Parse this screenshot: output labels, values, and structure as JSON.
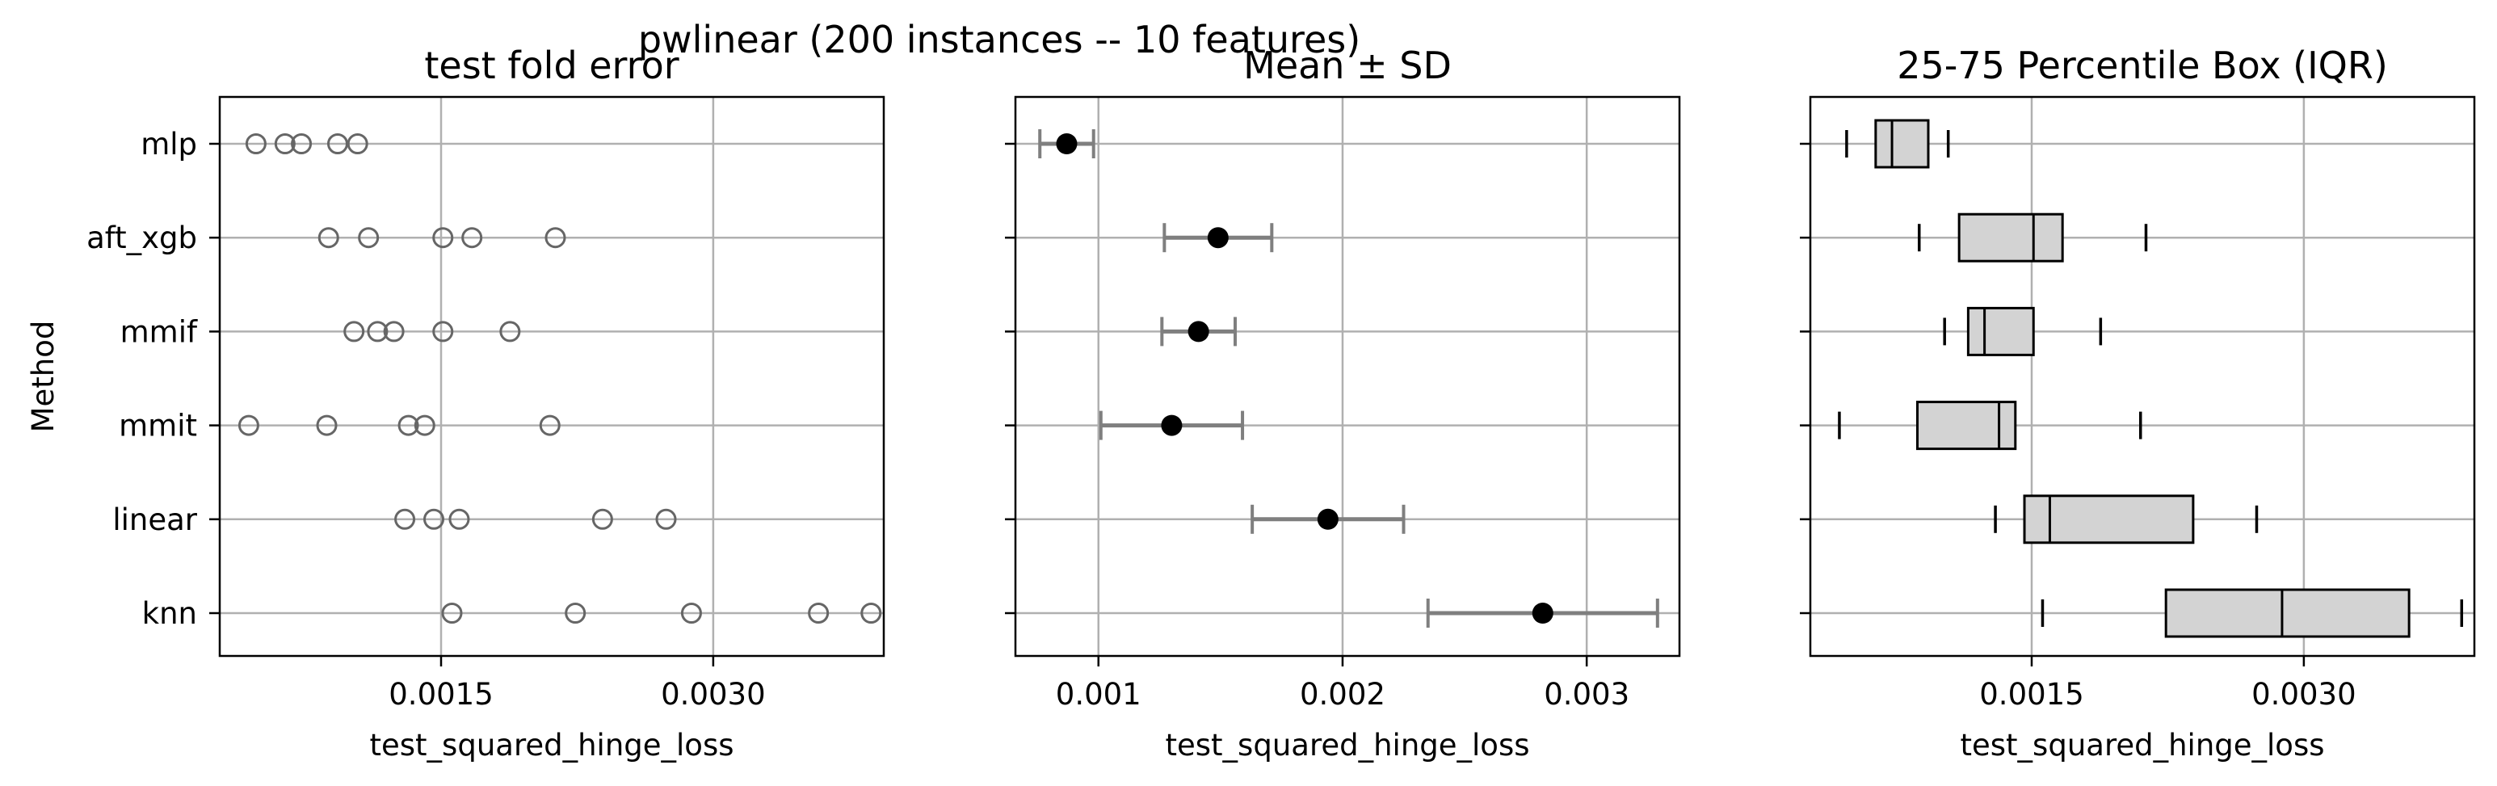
{
  "figure": {
    "suptitle": "pwlinear (200 instances -- 10 features)",
    "y_axis_label": "Method",
    "x_axis_label": "test_squared_hinge_loss"
  },
  "methods": [
    "mlp",
    "aft_xgb",
    "mmif",
    "mmit",
    "linear",
    "knn"
  ],
  "colors": {
    "marker_edge": "#666666",
    "mean_point": "#000000",
    "error_bar": "#7f7f7f",
    "box_fill": "#d3d3d3",
    "grid": "#b0b0b0"
  },
  "chart_data": [
    {
      "type": "scatter",
      "title": "test fold error",
      "xlabel": "test_squared_hinge_loss",
      "ylabel": "Method",
      "xlim": [
        0.00028,
        0.00394
      ],
      "xticks": [
        0.0015,
        0.003
      ],
      "xtick_labels": [
        "0.0015",
        "0.0030"
      ],
      "grid": true,
      "categories": [
        "mlp",
        "aft_xgb",
        "mmif",
        "mmit",
        "linear",
        "knn"
      ],
      "series": [
        {
          "category": "mlp",
          "values": [
            0.00048,
            0.00064,
            0.00073,
            0.00093,
            0.00104
          ]
        },
        {
          "category": "aft_xgb",
          "values": [
            0.00088,
            0.0011,
            0.00151,
            0.00167,
            0.00213
          ]
        },
        {
          "category": "mmif",
          "values": [
            0.00102,
            0.00115,
            0.00124,
            0.00151,
            0.00188
          ]
        },
        {
          "category": "mmit",
          "values": [
            0.00044,
            0.00087,
            0.00132,
            0.00141,
            0.0021
          ]
        },
        {
          "category": "linear",
          "values": [
            0.0013,
            0.00146,
            0.0016,
            0.00239,
            0.00274
          ]
        },
        {
          "category": "knn",
          "values": [
            0.00156,
            0.00224,
            0.00288,
            0.00358,
            0.00387
          ]
        }
      ]
    },
    {
      "type": "errorbar",
      "title": "Mean ± SD",
      "xlabel": "test_squared_hinge_loss",
      "xlim": [
        0.00066,
        0.00338
      ],
      "xticks": [
        0.001,
        0.002,
        0.003
      ],
      "xtick_labels": [
        "0.001",
        "0.002",
        "0.003"
      ],
      "grid": true,
      "categories": [
        "mlp",
        "aft_xgb",
        "mmif",
        "mmit",
        "linear",
        "knn"
      ],
      "series": [
        {
          "category": "mlp",
          "mean": 0.00087,
          "sd": 0.00011
        },
        {
          "category": "aft_xgb",
          "mean": 0.00149,
          "sd": 0.00022
        },
        {
          "category": "mmif",
          "mean": 0.00141,
          "sd": 0.00015
        },
        {
          "category": "mmit",
          "mean": 0.0013,
          "sd": 0.00029
        },
        {
          "category": "linear",
          "mean": 0.00194,
          "sd": 0.00031
        },
        {
          "category": "knn",
          "mean": 0.00282,
          "sd": 0.00047
        }
      ]
    },
    {
      "type": "box",
      "title": "25-75 Percentile Box (IQR)",
      "xlabel": "test_squared_hinge_loss",
      "xlim": [
        0.00028,
        0.00394
      ],
      "xticks": [
        0.0015,
        0.003
      ],
      "xtick_labels": [
        "0.0015",
        "0.0030"
      ],
      "grid": true,
      "categories": [
        "mlp",
        "aft_xgb",
        "mmif",
        "mmit",
        "linear",
        "knn"
      ],
      "series": [
        {
          "category": "mlp",
          "whisker_low": 0.00048,
          "q1": 0.00064,
          "median": 0.00073,
          "q3": 0.00093,
          "whisker_high": 0.00104
        },
        {
          "category": "aft_xgb",
          "whisker_low": 0.00088,
          "q1": 0.0011,
          "median": 0.00151,
          "q3": 0.00167,
          "whisker_high": 0.00213
        },
        {
          "category": "mmif",
          "whisker_low": 0.00102,
          "q1": 0.00115,
          "median": 0.00124,
          "q3": 0.00151,
          "whisker_high": 0.00188
        },
        {
          "category": "mmit",
          "whisker_low": 0.00044,
          "q1": 0.00087,
          "median": 0.00132,
          "q3": 0.00141,
          "whisker_high": 0.0021
        },
        {
          "category": "linear",
          "whisker_low": 0.0013,
          "q1": 0.00146,
          "median": 0.0016,
          "q3": 0.00239,
          "whisker_high": 0.00274
        },
        {
          "category": "knn",
          "whisker_low": 0.00156,
          "q1": 0.00224,
          "median": 0.00288,
          "q3": 0.00358,
          "whisker_high": 0.00387
        }
      ]
    }
  ]
}
